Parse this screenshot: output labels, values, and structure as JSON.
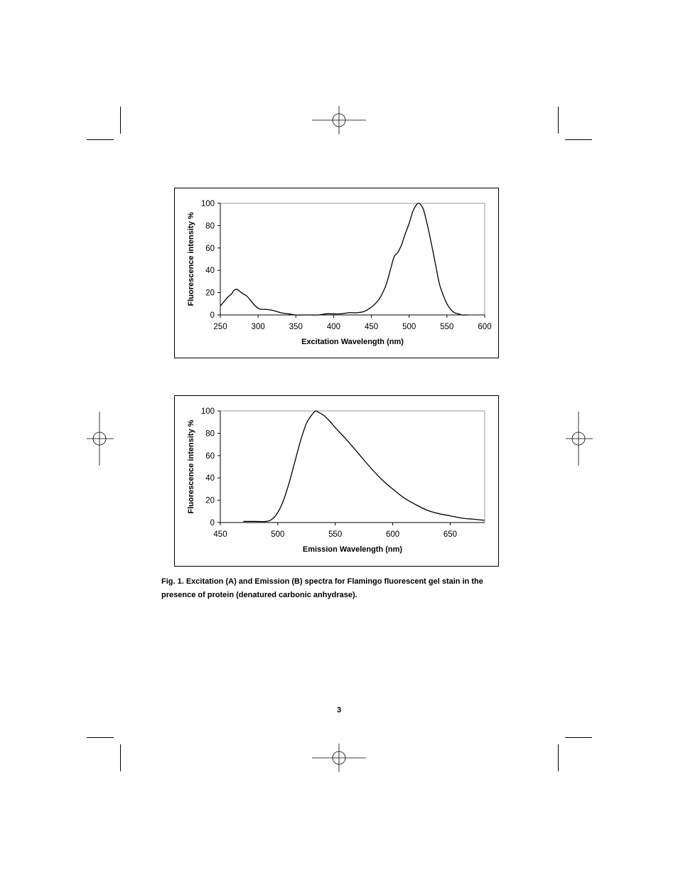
{
  "chart_data": [
    {
      "type": "line",
      "xlabel": "Excitation Wavelength (nm)",
      "ylabel": "Fluorescence intensity %",
      "xlim": [
        250,
        600
      ],
      "ylim": [
        0,
        100
      ],
      "xticks": [
        250,
        300,
        350,
        400,
        450,
        500,
        550,
        600
      ],
      "yticks": [
        0,
        20,
        40,
        60,
        80,
        100
      ],
      "grid": false,
      "series": [
        {
          "x": [
            250,
            255,
            260,
            265,
            268,
            272,
            276,
            280,
            285,
            290,
            295,
            300,
            305,
            310,
            320,
            330,
            340,
            350,
            360,
            370,
            380,
            390,
            400,
            410,
            420,
            430,
            440,
            450,
            455,
            460,
            465,
            470,
            475,
            480,
            485,
            490,
            495,
            500,
            505,
            510,
            513,
            515,
            518,
            520,
            525,
            530,
            535,
            540,
            545,
            550,
            555,
            560,
            565,
            570,
            575,
            578
          ],
          "y": [
            8,
            12,
            16,
            19,
            22,
            23,
            21,
            19,
            17,
            13,
            9,
            6,
            5,
            5,
            4,
            2,
            1,
            0,
            0,
            0,
            0,
            1,
            1,
            1,
            2,
            2,
            3,
            7,
            10,
            14,
            20,
            28,
            40,
            52,
            56,
            63,
            73,
            82,
            93,
            99,
            100,
            99,
            96,
            92,
            78,
            62,
            45,
            28,
            18,
            10,
            5,
            2,
            1,
            0,
            0,
            0
          ]
        }
      ]
    },
    {
      "type": "line",
      "xlabel": "Emission Wavelength (nm)",
      "ylabel": "Fluorescence intensity %",
      "xlim": [
        450,
        680
      ],
      "ylim": [
        0,
        100
      ],
      "xticks": [
        450,
        500,
        550,
        600,
        650
      ],
      "yticks": [
        0,
        20,
        40,
        60,
        80,
        100
      ],
      "grid": false,
      "series": [
        {
          "x": [
            470,
            480,
            490,
            495,
            500,
            505,
            510,
            515,
            520,
            525,
            530,
            533,
            535,
            540,
            545,
            550,
            560,
            570,
            580,
            590,
            600,
            610,
            620,
            630,
            640,
            650,
            660,
            670,
            680
          ],
          "y": [
            1,
            1,
            1,
            3,
            9,
            20,
            36,
            55,
            74,
            89,
            97,
            100,
            99,
            96,
            91,
            85,
            74,
            62,
            50,
            39,
            30,
            22,
            16,
            11,
            8,
            6,
            4,
            3,
            2
          ]
        }
      ]
    }
  ],
  "caption": "Fig. 1. Excitation (A) and Emission (B) spectra for Flamingo fluorescent gel stain in the presence of protein (denatured carbonic anhydrase).",
  "page_number": "3"
}
